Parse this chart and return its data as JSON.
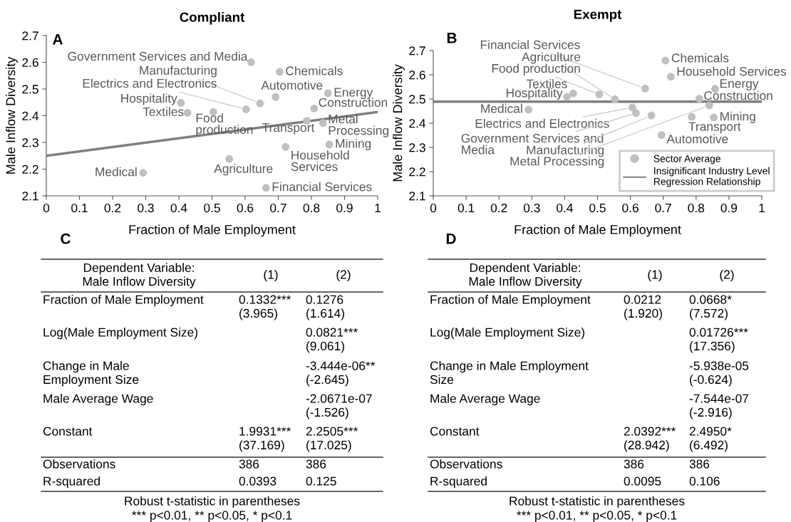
{
  "chart_data": [
    {
      "type": "scatter",
      "title": "Compliant",
      "xlabel": "Fraction of Male Employment",
      "ylabel": "Male Inflow Diversity",
      "xlim": [
        0,
        1
      ],
      "ylim": [
        2.1,
        2.7
      ],
      "xticks": [
        0,
        0.1,
        0.2,
        0.3,
        0.4,
        0.5,
        0.6,
        0.7,
        0.8,
        0.9,
        1
      ],
      "yticks": [
        2.1,
        2.2,
        2.3,
        2.4,
        2.5,
        2.6,
        2.7
      ],
      "series": [
        {
          "type": "scatter",
          "marker": "circle",
          "color": "#c0c0c0",
          "x": [
            0.618,
            0.704,
            0.692,
            0.85,
            0.645,
            0.603,
            0.808,
            0.406,
            0.426,
            0.504,
            0.786,
            0.835,
            0.854,
            0.722,
            0.552,
            0.292,
            0.663
          ],
          "values": [
            2.6,
            2.564,
            2.47,
            2.484,
            2.446,
            2.424,
            2.427,
            2.448,
            2.411,
            2.414,
            2.381,
            2.373,
            2.292,
            2.283,
            2.238,
            2.186,
            2.13
          ]
        },
        {
          "type": "line",
          "color": "#7f7f7f",
          "x": [
            0,
            1
          ],
          "values": [
            2.25,
            2.414
          ]
        }
      ],
      "annotations": [
        "A",
        {
          "text": "Government Services and Media",
          "x": 0.618,
          "y": 2.6
        },
        {
          "text": "Chemicals",
          "x": 0.704,
          "y": 2.564
        },
        {
          "text": "Automotive",
          "x": 0.692,
          "y": 2.47
        },
        {
          "text": "Energy",
          "x": 0.85,
          "y": 2.484
        },
        {
          "text": "Manufacturing",
          "x": 0.645,
          "y": 2.446
        },
        {
          "text": "Electrics and Electronics",
          "x": 0.603,
          "y": 2.424
        },
        {
          "text": "Construction",
          "x": 0.808,
          "y": 2.427
        },
        {
          "text": "Hospitality",
          "x": 0.406,
          "y": 2.448
        },
        {
          "text": "Textiles",
          "x": 0.426,
          "y": 2.411
        },
        {
          "text": "Food\nproduction",
          "x": 0.504,
          "y": 2.414
        },
        {
          "text": "Transport",
          "x": 0.786,
          "y": 2.381
        },
        {
          "text": "Metal\nProcessing",
          "x": 0.835,
          "y": 2.373
        },
        {
          "text": "Mining",
          "x": 0.854,
          "y": 2.292
        },
        {
          "text": "Household\nServices",
          "x": 0.722,
          "y": 2.283
        },
        {
          "text": "Agriculture",
          "x": 0.552,
          "y": 2.238
        },
        {
          "text": "Medical",
          "x": 0.292,
          "y": 2.186
        },
        {
          "text": "Financial Services",
          "x": 0.663,
          "y": 2.13
        }
      ]
    },
    {
      "type": "scatter",
      "title": "Exempt",
      "xlabel": "Fraction of Male Employment",
      "ylabel": "Male Inflow Diversity",
      "xlim": [
        0,
        1
      ],
      "ylim": [
        2.1,
        2.7
      ],
      "xticks": [
        0,
        0.1,
        0.2,
        0.3,
        0.4,
        0.5,
        0.6,
        0.7,
        0.8,
        0.9,
        1
      ],
      "yticks": [
        2.1,
        2.2,
        2.3,
        2.4,
        2.5,
        2.6,
        2.7
      ],
      "legend": "bottom right",
      "series": [
        {
          "type": "scatter",
          "marker": "circle",
          "name": "Sector Average",
          "color": "#c0c0c0",
          "x": [
            0.645,
            0.553,
            0.505,
            0.426,
            0.407,
            0.29,
            0.707,
            0.723,
            0.858,
            0.81,
            0.606,
            0.617,
            0.664,
            0.84,
            0.787,
            0.854,
            0.695
          ],
          "values": [
            2.543,
            2.499,
            2.519,
            2.523,
            2.509,
            2.456,
            2.659,
            2.592,
            2.542,
            2.501,
            2.465,
            2.442,
            2.432,
            2.474,
            2.426,
            2.424,
            2.351
          ]
        },
        {
          "type": "line",
          "name": "Insignificant Industry Level\nRegression Relationship",
          "color": "#7f7f7f",
          "x": [
            0,
            1
          ],
          "values": [
            2.489,
            2.489
          ]
        }
      ],
      "annotations": [
        "B",
        {
          "text": "Financial Services",
          "x": 0.645,
          "y": 2.543
        },
        {
          "text": "Agriculture",
          "x": 0.553,
          "y": 2.499
        },
        {
          "text": "Food production",
          "x": 0.505,
          "y": 2.519
        },
        {
          "text": "Textiles",
          "x": 0.426,
          "y": 2.523
        },
        {
          "text": "Hospitality",
          "x": 0.407,
          "y": 2.509
        },
        {
          "text": "Medical",
          "x": 0.29,
          "y": 2.456
        },
        {
          "text": "Chemicals",
          "x": 0.707,
          "y": 2.659
        },
        {
          "text": "Household Services",
          "x": 0.723,
          "y": 2.592
        },
        {
          "text": "Energy",
          "x": 0.858,
          "y": 2.542
        },
        {
          "text": "Construction",
          "x": 0.81,
          "y": 2.501
        },
        {
          "text": "Electrics and Electronics",
          "x": 0.606,
          "y": 2.465
        },
        {
          "text": "Government Services and\nMedia",
          "x": 0.617,
          "y": 2.442
        },
        {
          "text": "Manufacturing",
          "x": 0.664,
          "y": 2.432
        },
        {
          "text": "Metal Processing",
          "x": 0.84,
          "y": 2.474
        },
        {
          "text": "Transport",
          "x": 0.787,
          "y": 2.426
        },
        {
          "text": "Mining",
          "x": 0.854,
          "y": 2.424
        },
        {
          "text": "Automotive",
          "x": 0.695,
          "y": 2.351
        }
      ]
    },
    {
      "type": "other",
      "title": "C",
      "categories": [
        "Dependent Variable:\nMale Inflow Diversity",
        "(1)",
        "(2)"
      ],
      "y_categories": [
        "Fraction of Male Employment",
        "Log(Male Employment Size)",
        "Change in Male\nEmployment Size",
        "Male Average Wage",
        "Constant",
        "Observations",
        "R-squared"
      ],
      "cell_labels": [
        [
          "0.1332***\n(3.965)",
          "0.1276\n(1.614)"
        ],
        [
          null,
          "0.0821***\n(9.061)"
        ],
        [
          null,
          "-3.444e-06**\n(-2.645)"
        ],
        [
          null,
          "-2.0671e-07\n(-1.526)"
        ],
        [
          "1.9931***\n(37.169)",
          "2.2505***\n(17.025)"
        ],
        [
          "386",
          "386"
        ],
        [
          "0.0393",
          "0.125"
        ]
      ],
      "annotations": [
        "Robust t-statistic in parentheses",
        "*** p<0.01, ** p<0.05, * p<0.1"
      ]
    },
    {
      "type": "other",
      "title": "D",
      "categories": [
        "Dependent Variable:\nMale Inflow Diversity",
        "(1)",
        "(2)"
      ],
      "y_categories": [
        "Fraction of Male Employment",
        "Log(Male Employment Size)",
        "Change in Male Employment\nSize",
        "Male Average Wage",
        "Constant",
        "Observations",
        "R-squared"
      ],
      "cell_labels": [
        [
          "0.0212\n(1.920)",
          "0.0668*\n(7.572)"
        ],
        [
          null,
          "0.01726***\n(17.356)"
        ],
        [
          null,
          "-5.938e-05\n(-0.624)"
        ],
        [
          null,
          "-7.544e-07\n(-2.916)"
        ],
        [
          "2.0392***\n(28.942)",
          "2.4950*\n(6.492)"
        ],
        [
          "386",
          "386"
        ],
        [
          "0.0095",
          "0.106"
        ]
      ],
      "annotations": [
        "Robust t-statistic in parentheses",
        "*** p<0.01, ** p<0.05, * p<0.1"
      ]
    }
  ]
}
